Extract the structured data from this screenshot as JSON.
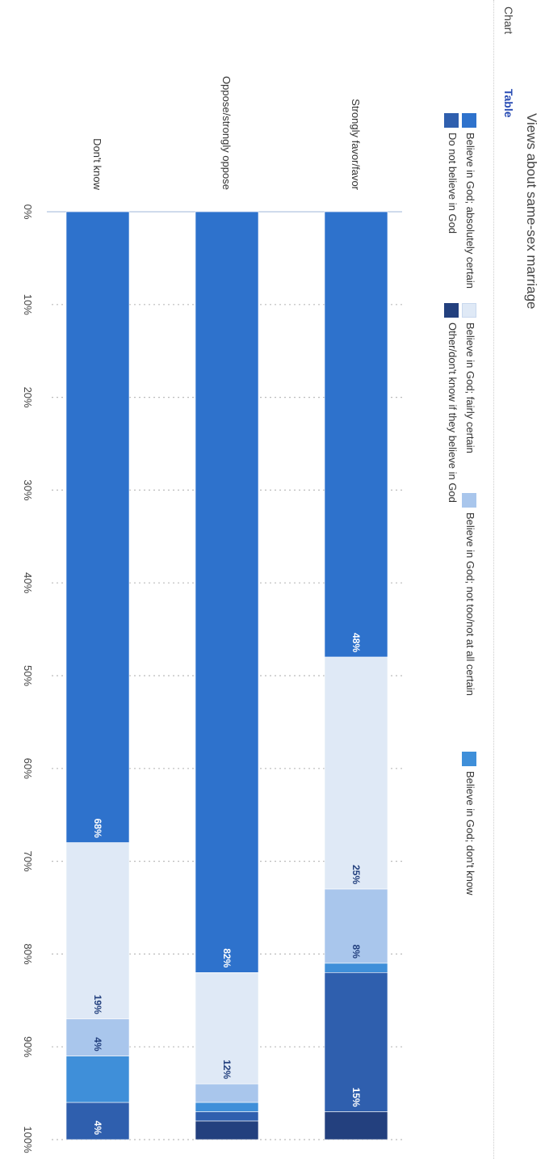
{
  "header": {
    "tabs": [
      "Chart",
      "Table"
    ]
  },
  "chart_data": {
    "type": "bar",
    "orientation": "horizontal-stacked",
    "title": "Views about same-sex marriage",
    "categories": [
      "Strongly favor/favor",
      "Oppose/strongly oppose",
      "Don't know"
    ],
    "series": [
      {
        "name": "Believe in God; absolutely certain",
        "color": "#2e72cc",
        "values": [
          48,
          82,
          68
        ],
        "labels": [
          "48%",
          "82%",
          "68%"
        ]
      },
      {
        "name": "Believe in God; fairly certain",
        "color": "#dfe9f6",
        "values": [
          25,
          12,
          19
        ],
        "labels": [
          "25%",
          "12%",
          "19%"
        ]
      },
      {
        "name": "Believe in God; not too/not at all certain",
        "color": "#a9c6ec",
        "values": [
          8,
          2,
          4
        ],
        "labels": [
          "8%",
          "",
          "4%"
        ]
      },
      {
        "name": "Believe in God; don't know",
        "color": "#3f8fd9",
        "values": [
          1,
          1,
          5
        ],
        "labels": [
          "",
          "",
          ""
        ]
      },
      {
        "name": "Do not believe in God",
        "color": "#2f5fae",
        "values": [
          15,
          1,
          4
        ],
        "labels": [
          "15%",
          "",
          "4%"
        ]
      },
      {
        "name": "Other/don't know if they believe in God",
        "color": "#23407e",
        "values": [
          3,
          2,
          0
        ],
        "labels": [
          "",
          "",
          ""
        ]
      }
    ],
    "xticks": [
      "0%",
      "10%",
      "20%",
      "30%",
      "40%",
      "50%",
      "60%",
      "70%",
      "80%",
      "90%",
      "100%"
    ],
    "xlim": [
      0,
      100
    ],
    "grid": true,
    "legend_position": "top"
  }
}
